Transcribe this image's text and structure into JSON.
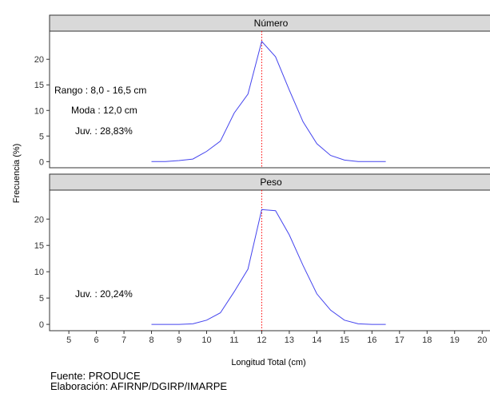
{
  "chart_data": {
    "type": "line",
    "xlabel": "Longitud Total (cm)",
    "ylabel": "Frecuencia (%)",
    "xlim": [
      4.3,
      20.4
    ],
    "x_ticks": [
      "5",
      "6",
      "7",
      "8",
      "9",
      "10",
      "11",
      "12",
      "13",
      "14",
      "15",
      "16",
      "17",
      "18",
      "19",
      "20"
    ],
    "grid": false,
    "line_color": "#4444ee",
    "vline": {
      "x": 12.0,
      "color": "#ff0000",
      "style": "dotted"
    },
    "panels": [
      {
        "title": "Número",
        "ylim": [
          -1.2,
          25.5
        ],
        "y_ticks": [
          "0",
          "5",
          "10",
          "15",
          "20"
        ],
        "annotations": [
          "Rango : 8,0 - 16,5 cm",
          "Moda : 12,0 cm",
          "Juv. : 28,83%"
        ],
        "x": [
          8.0,
          8.5,
          9.0,
          9.5,
          10.0,
          10.5,
          11.0,
          11.5,
          12.0,
          12.5,
          13.0,
          13.5,
          14.0,
          14.5,
          15.0,
          15.5,
          16.0,
          16.5
        ],
        "values": [
          0.0,
          0.0,
          0.2,
          0.5,
          2.0,
          4.0,
          9.5,
          13.2,
          23.5,
          20.5,
          14.0,
          7.8,
          3.5,
          1.2,
          0.3,
          0.0,
          0.0,
          0.0
        ]
      },
      {
        "title": "Peso",
        "ylim": [
          -1.2,
          25.5
        ],
        "y_ticks": [
          "0",
          "5",
          "10",
          "15",
          "20"
        ],
        "annotations": [
          "Juv. : 20,24%"
        ],
        "x": [
          8.0,
          8.5,
          9.0,
          9.5,
          10.0,
          10.5,
          11.0,
          11.5,
          12.0,
          12.5,
          13.0,
          13.5,
          14.0,
          14.5,
          15.0,
          15.5,
          16.0,
          16.5
        ],
        "values": [
          0.0,
          0.0,
          0.0,
          0.1,
          0.8,
          2.2,
          6.2,
          10.5,
          21.8,
          21.6,
          17.0,
          11.2,
          5.8,
          2.7,
          0.8,
          0.1,
          0.0,
          0.0
        ]
      }
    ]
  },
  "footer": {
    "source": "Fuente: PRODUCE",
    "credit": "Elaboración: AFIRNP/DGIRP/IMARPE"
  }
}
